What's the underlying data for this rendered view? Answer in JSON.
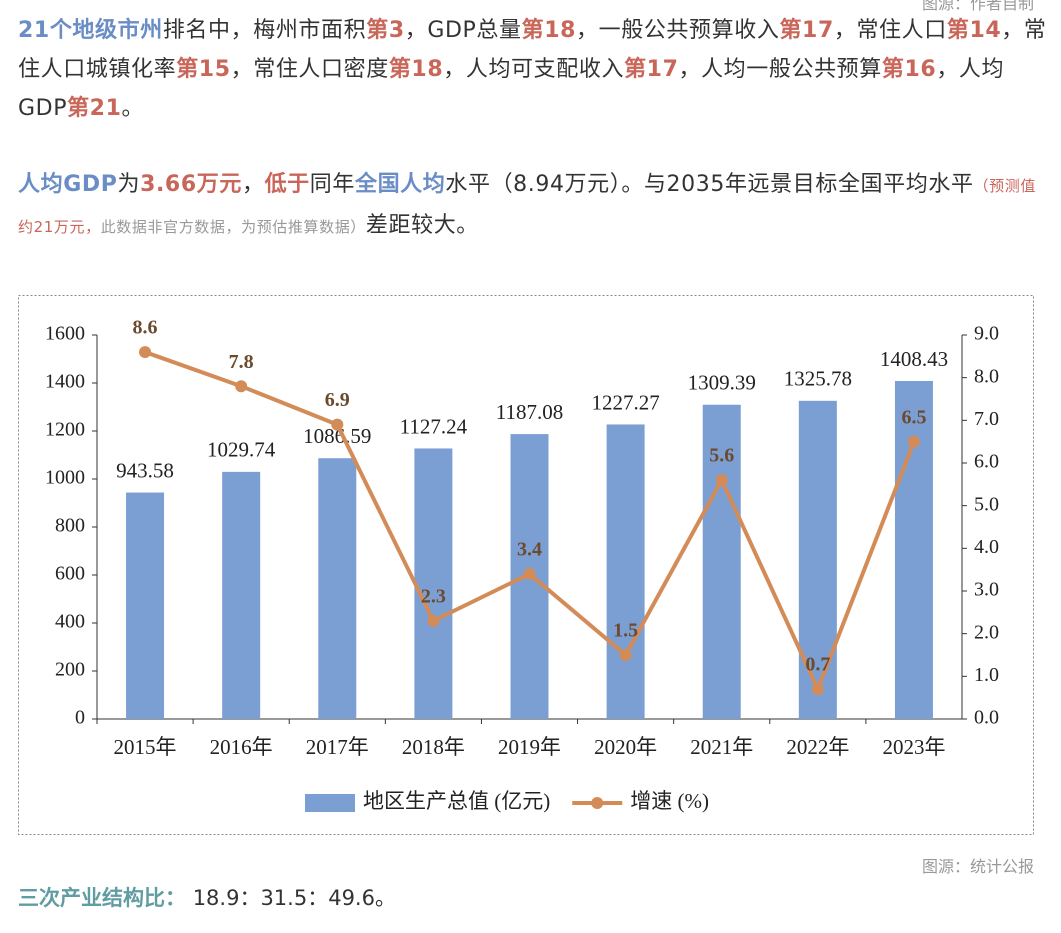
{
  "header": {
    "source_top": "图源：作者自制"
  },
  "paragraph_1": [
    "21个地级市州",
    "排名中，梅州市面积",
    "第3",
    "，GDP总量",
    "第18",
    "，一般公共预算收入",
    "第17",
    "，常住人口",
    "第14",
    "，常住人口城镇化率",
    "第15",
    "，常住人口密度",
    "第18",
    "，人均可支配收入",
    "第17",
    "，人均一般公共预算",
    "第16",
    "，人均GDP",
    "第21",
    "。"
  ],
  "paragraph_2": [
    "人均GDP",
    "为",
    "3.66万元",
    "，",
    "低于",
    "同年",
    "全国人均",
    "水平（8.94万元）。与2035年远景目标全国平均水平",
    "（预测值约21万元，",
    "此数据非官方数据，为预估推算数据）",
    "差距较大。"
  ],
  "chart_data": {
    "type": "combo",
    "categories": [
      "2015年",
      "2016年",
      "2017年",
      "2018年",
      "2019年",
      "2020年",
      "2021年",
      "2022年",
      "2023年"
    ],
    "series": [
      {
        "name": "地区生产总值 (亿元)",
        "color": "#7b9fd3",
        "values": [
          943.58,
          1029.74,
          1086.59,
          1127.24,
          1187.08,
          1227.27,
          1309.39,
          1325.78,
          1408.43
        ]
      },
      {
        "name": "增速 (%)",
        "color": "#d38c58",
        "axis": "y2",
        "values": [
          8.6,
          7.8,
          6.9,
          2.3,
          3.4,
          1.5,
          5.6,
          0.7,
          6.5
        ]
      }
    ],
    "ylim": [
      0,
      1600
    ],
    "yticks": [
      0,
      200,
      400,
      600,
      800,
      1000,
      1200,
      1400,
      1600
    ],
    "y2lim": [
      0,
      9
    ],
    "y2ticks": [
      {
        "value": 0,
        "label": "0.0"
      },
      {
        "value": 1,
        "label": "1.0"
      },
      {
        "value": 2,
        "label": "2.0"
      },
      {
        "value": 3,
        "label": "3.0"
      },
      {
        "value": 4,
        "label": "4.0"
      },
      {
        "value": 5,
        "label": "5.0"
      },
      {
        "value": 6,
        "label": "6.0"
      },
      {
        "value": 7,
        "label": "7.0"
      },
      {
        "value": 8,
        "label": "8.0"
      },
      {
        "value": 9,
        "label": "9.0"
      }
    ],
    "grid": false
  },
  "chart_source": "图源：统计公报",
  "structure_ratio": {
    "label": "三次产业结构比：",
    "value": "18.9：31.5：49.6。"
  }
}
